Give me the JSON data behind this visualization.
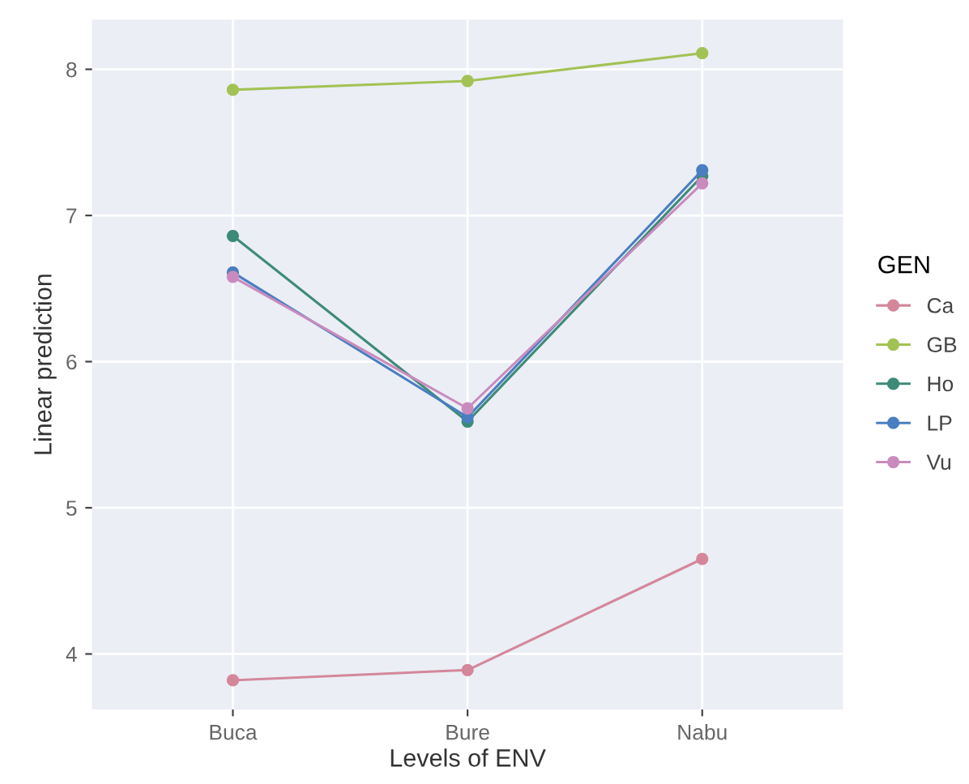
{
  "chart_data": {
    "type": "line",
    "xlabel": "Levels of ENV",
    "ylabel": "Linear prediction",
    "legend_title": "GEN",
    "categories": [
      "Buca",
      "Bure",
      "Nabu"
    ],
    "series": [
      {
        "name": "Ca",
        "color": "#d4879a",
        "values": [
          3.82,
          3.89,
          4.65
        ]
      },
      {
        "name": "GB",
        "color": "#a3c255",
        "values": [
          7.86,
          7.92,
          8.11
        ]
      },
      {
        "name": "Ho",
        "color": "#3d8a78",
        "values": [
          6.86,
          5.59,
          7.27
        ]
      },
      {
        "name": "LP",
        "color": "#4a7ec0",
        "values": [
          6.61,
          5.62,
          7.31
        ]
      },
      {
        "name": "Vu",
        "color": "#c98bbd",
        "values": [
          6.58,
          5.68,
          7.22
        ]
      }
    ],
    "ylim": [
      3.62,
      8.34
    ],
    "yticks": [
      4,
      5,
      6,
      7,
      8
    ],
    "grid": true,
    "legend": "right",
    "marker": "circle",
    "line_style": "solid"
  }
}
